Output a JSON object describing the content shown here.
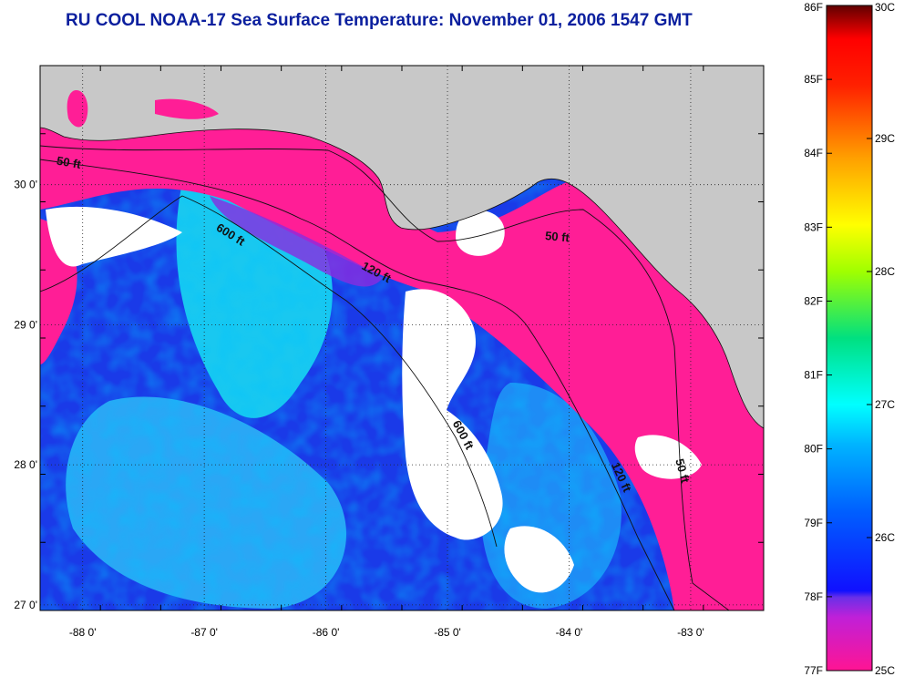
{
  "title": "RU COOL  NOAA-17  Sea Surface Temperature:  November 01, 2006 1547 GMT",
  "map": {
    "lon_range": [
      -88.35,
      -82.4
    ],
    "lat_range": [
      26.96,
      30.85
    ],
    "lon_ticks": [
      {
        "value": -88,
        "label": "-88 0'"
      },
      {
        "value": -87,
        "label": "-87 0'"
      },
      {
        "value": -86,
        "label": "-86 0'"
      },
      {
        "value": -85,
        "label": "-85 0'"
      },
      {
        "value": -84,
        "label": "-84 0'"
      },
      {
        "value": -83,
        "label": "-83 0'"
      }
    ],
    "lat_ticks": [
      {
        "value": 27,
        "label": "27 0'"
      },
      {
        "value": 28,
        "label": "28 0'"
      },
      {
        "value": 29,
        "label": "29 0'"
      },
      {
        "value": 30,
        "label": "30 0'"
      }
    ],
    "grid": "dotted",
    "land_color": "#c8c8c8",
    "cloud_color": "#ffffff",
    "contours": [
      {
        "label": "50 ft"
      },
      {
        "label": "120 ft"
      },
      {
        "label": "600 ft"
      }
    ],
    "contour_labels": [
      {
        "text": "50 ft",
        "lon": -88.12,
        "lat": 30.13,
        "angle": 10
      },
      {
        "text": "600 ft",
        "lon": -86.8,
        "lat": 29.62,
        "angle": 32
      },
      {
        "text": "120 ft",
        "lon": -85.6,
        "lat": 29.35,
        "angle": 28
      },
      {
        "text": "50 ft",
        "lon": -84.1,
        "lat": 29.6,
        "angle": 5
      },
      {
        "text": "600 ft",
        "lon": -84.9,
        "lat": 28.2,
        "angle": 62
      },
      {
        "text": "120 ft",
        "lon": -83.6,
        "lat": 27.9,
        "angle": 65
      },
      {
        "text": "50 ft",
        "lon": -83.1,
        "lat": 27.95,
        "angle": 75
      }
    ]
  },
  "colorbar": {
    "fahrenheit_labels": [
      "86F",
      "85F",
      "84F",
      "83F",
      "82F",
      "81F",
      "80F",
      "79F",
      "78F",
      "77F"
    ],
    "celsius_labels": [
      "30C",
      "29C",
      "28C",
      "27C",
      "26C",
      "25C"
    ],
    "range_f": [
      77,
      86
    ],
    "range_c": [
      25,
      30
    ],
    "colors": [
      "#ff1493",
      "#a030e0",
      "#0010ff",
      "#00a0ff",
      "#00ffff",
      "#00e070",
      "#c0ff00",
      "#ffff00",
      "#ffa000",
      "#ff3000",
      "#ff0000",
      "#600000"
    ]
  }
}
